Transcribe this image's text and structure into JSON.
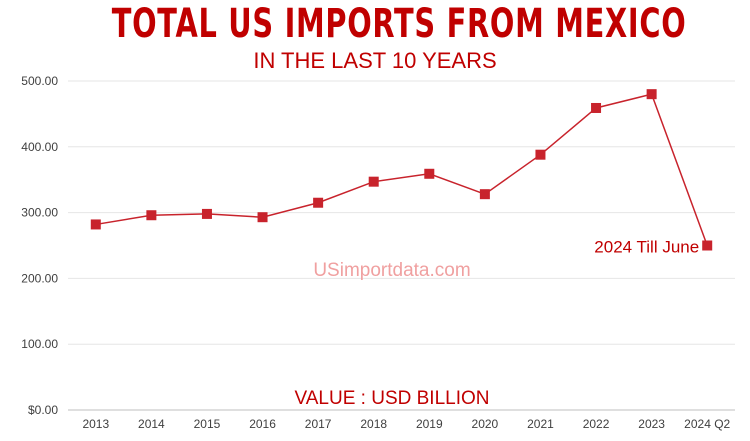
{
  "chart_data": {
    "type": "line",
    "title": "TOTAL US IMPORTS FROM MEXICO",
    "subtitle": "IN THE LAST 10 YEARS",
    "xlabel": "VALUE : USD BILLION",
    "ylabel": "",
    "categories": [
      "2013",
      "2014",
      "2015",
      "2016",
      "2017",
      "2018",
      "2019",
      "2020",
      "2021",
      "2022",
      "2023",
      "2024 Q2"
    ],
    "series": [
      {
        "values": [
          282,
          296,
          298,
          293,
          315,
          347,
          359,
          328,
          388,
          459,
          480,
          250
        ]
      }
    ],
    "ylim": [
      0,
      500
    ],
    "yticks": [
      "$0.00",
      "100.00",
      "200.00",
      "300.00",
      "400.00",
      "500.00"
    ],
    "grid": true,
    "annotation": "2024 Till June",
    "watermark": "USimportdata.com",
    "colors": {
      "line": "#c8232c",
      "title": "#c00000",
      "grid": "#e6e6e6",
      "watermark": "#f0a0a0"
    }
  }
}
